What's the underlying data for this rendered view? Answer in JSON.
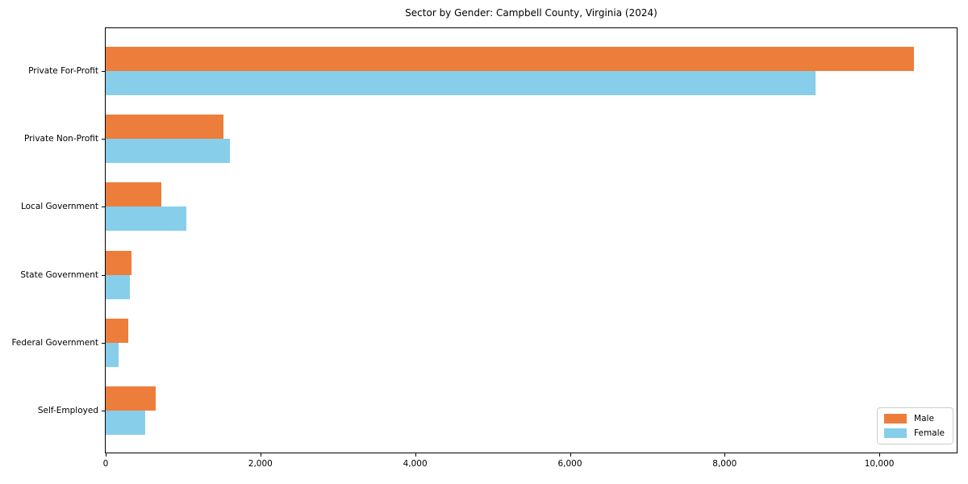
{
  "title": "Sector by Gender: Campbell County, Virginia (2024)",
  "colors": {
    "male": "#ED7D3A",
    "female": "#87CEEB",
    "axis": "#000000",
    "legend_border": "#cccccc",
    "background": "#ffffff"
  },
  "legend": {
    "position": "lower right",
    "items": [
      "Male",
      "Female"
    ]
  },
  "chart_data": {
    "type": "bar",
    "orientation": "horizontal",
    "title": "Sector by Gender: Campbell County, Virginia (2024)",
    "categories": [
      "Private For-Profit",
      "Private Non-Profit",
      "Local Government",
      "State Government",
      "Federal Government",
      "Self-Employed"
    ],
    "series": [
      {
        "name": "Male",
        "color": "#ED7D3A",
        "values": [
          10450,
          1520,
          715,
          330,
          290,
          645
        ]
      },
      {
        "name": "Female",
        "color": "#87CEEB",
        "values": [
          9180,
          1600,
          1040,
          310,
          170,
          510
        ]
      }
    ],
    "xlabel": "",
    "ylabel": "",
    "xlim": [
      0,
      11000
    ],
    "xticks": [
      0,
      2000,
      4000,
      6000,
      8000,
      10000
    ],
    "xtick_labels": [
      "0",
      "2,000",
      "4,000",
      "6,000",
      "8,000",
      "10,000"
    ],
    "grid": false,
    "legend_position": "lower right"
  }
}
